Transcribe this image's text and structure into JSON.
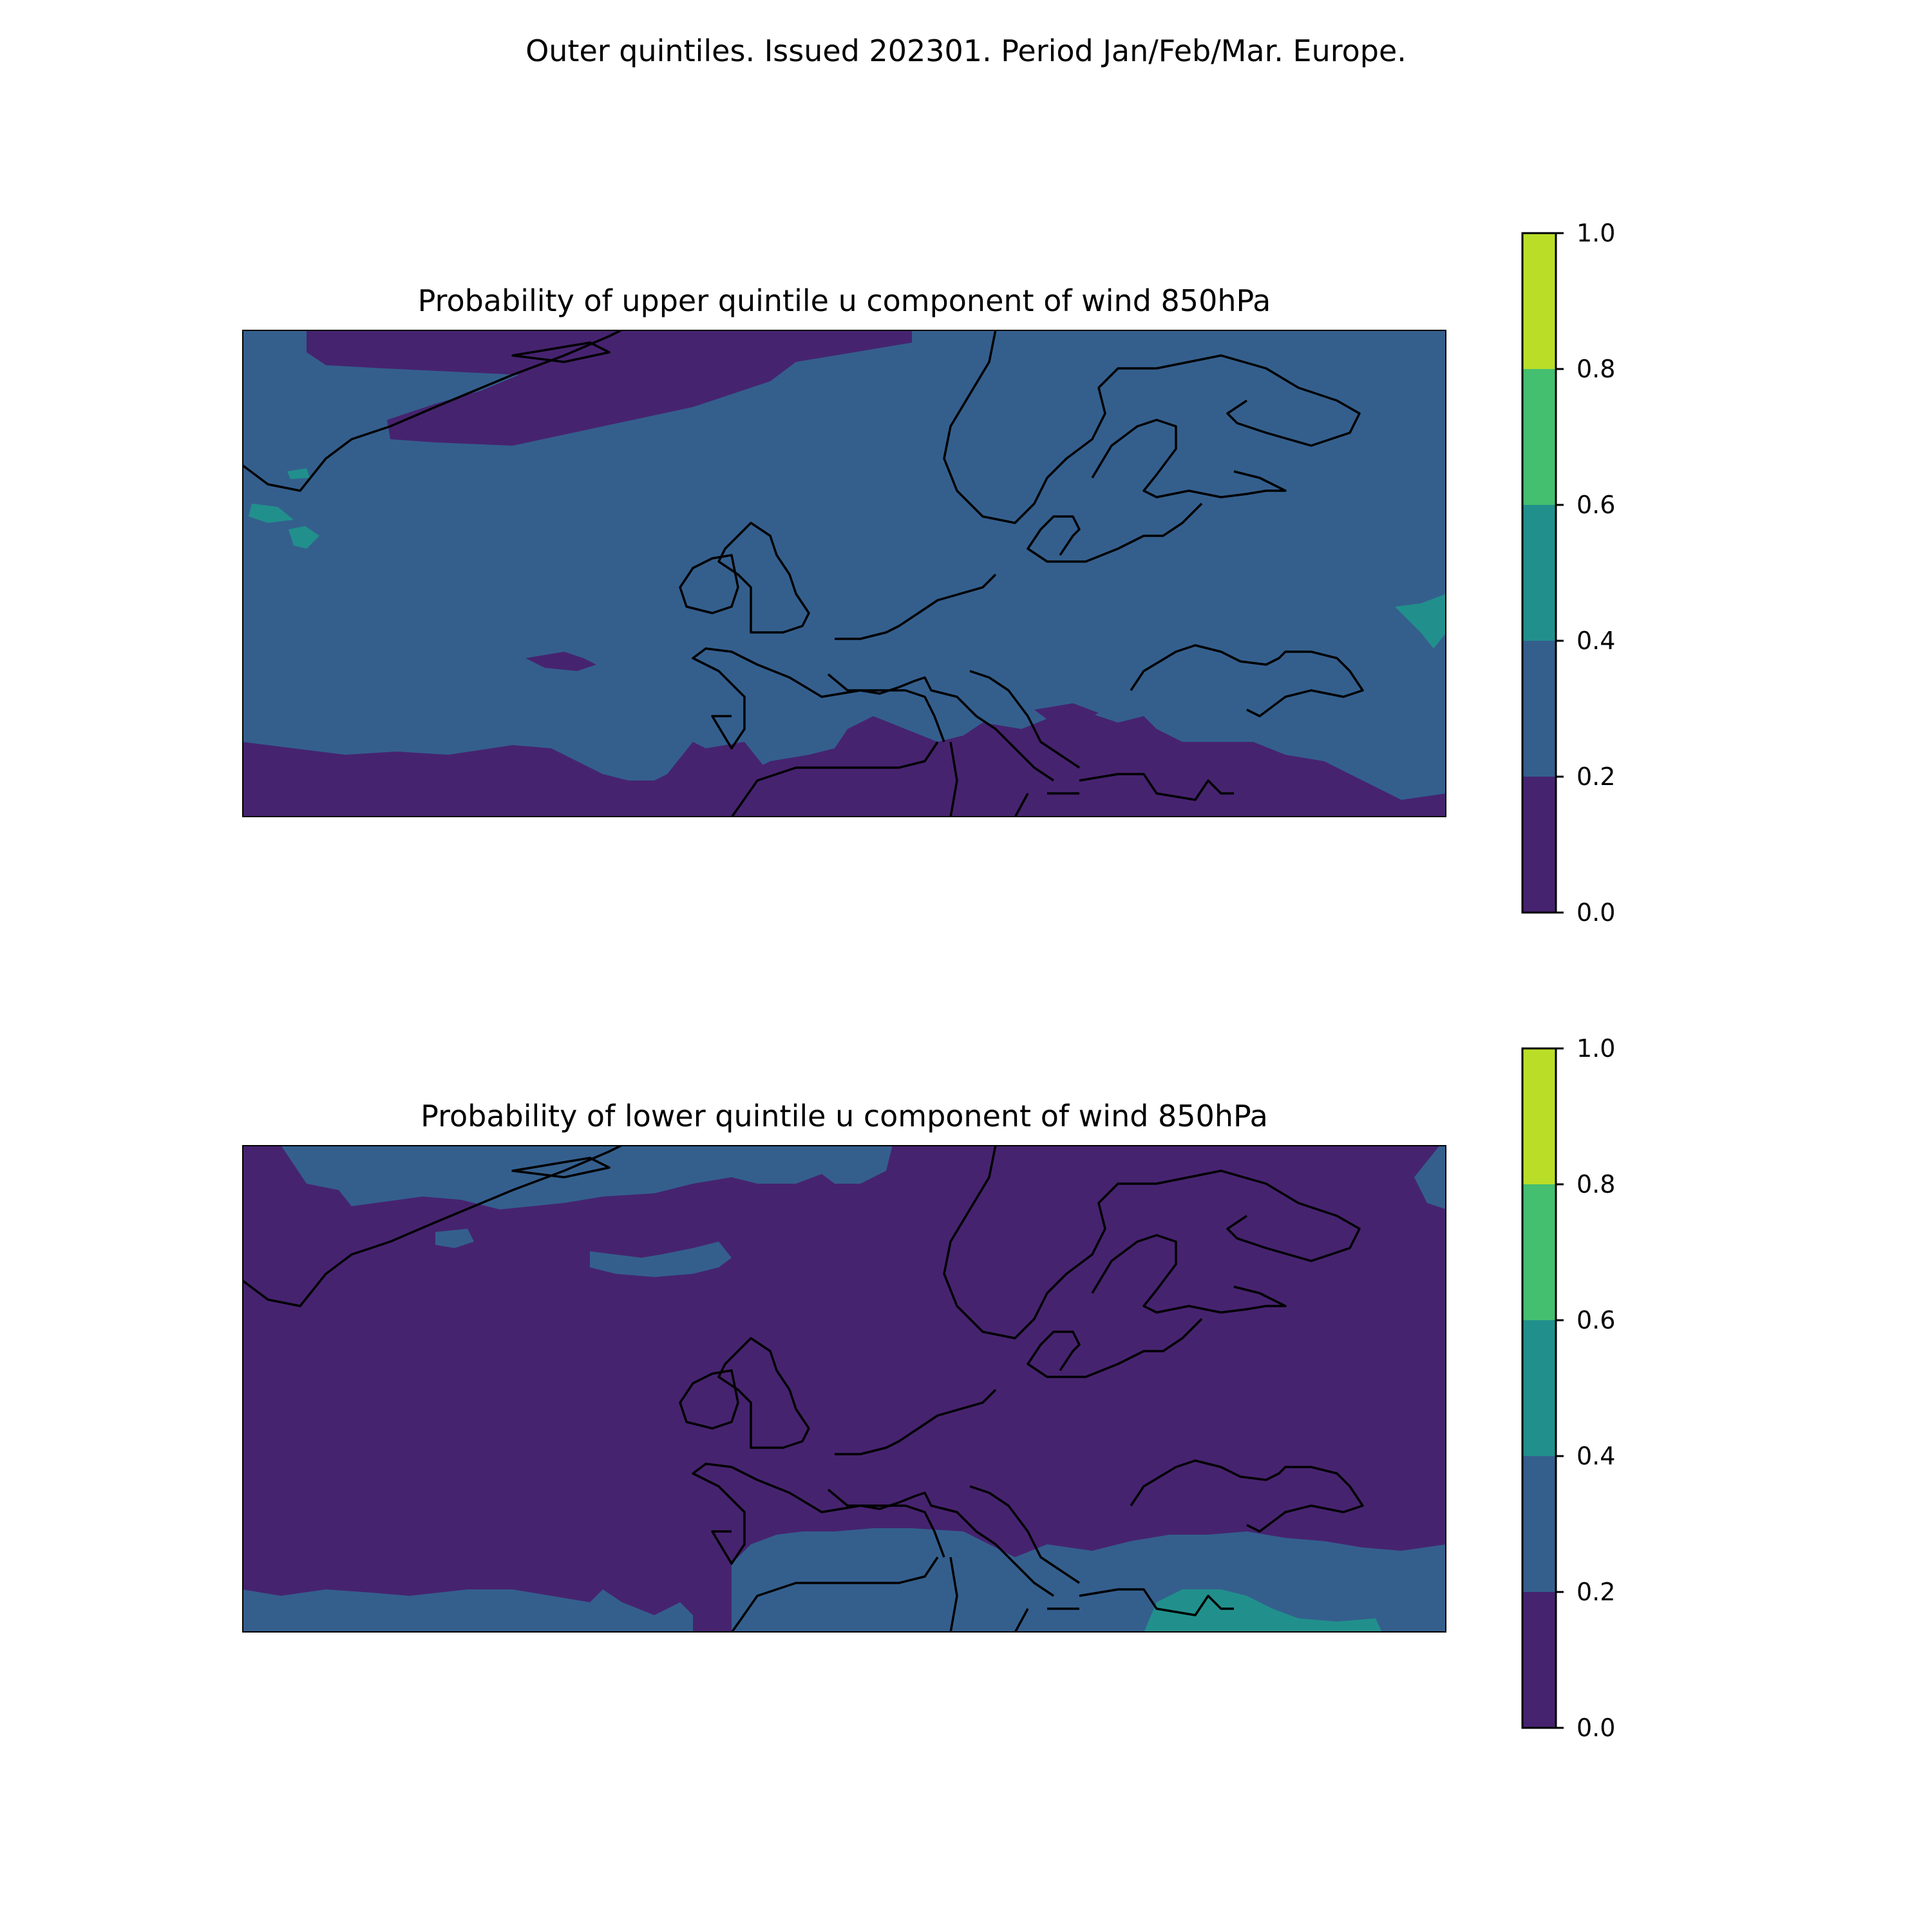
{
  "title": "Outer quintiles. Issued 202301. Period Jan/Feb/Mar. Europe.",
  "colors": {
    "levels": [
      "#46236f",
      "#345f8d",
      "#21908c",
      "#44bf70",
      "#bade27"
    ],
    "coastline": "#000000",
    "frame": "#000000"
  },
  "colorbar": {
    "boundaries": [
      0.0,
      0.2,
      0.4,
      0.6,
      0.8,
      1.0
    ],
    "tick_labels": [
      "0.0",
      "0.2",
      "0.4",
      "0.6",
      "0.8",
      "1.0"
    ]
  },
  "panels": [
    {
      "title": "Probability of upper quintile u component of wind 850hPa",
      "background_level": "0.2–0.4",
      "regions": [
        {
          "level": "0.0–0.2",
          "area": "northern Greenland Sea / Iceland north"
        },
        {
          "level": "0.0–0.2",
          "area": "subtropical Atlantic south edge"
        },
        {
          "level": "0.0–0.2",
          "area": "Mediterranean / North Africa / Turkey"
        },
        {
          "level": "0.4–0.6",
          "area": "small patches east of Greenland"
        },
        {
          "level": "0.4–0.6",
          "area": "far east edge near Caspian"
        }
      ]
    },
    {
      "title": "Probability of lower quintile u component of wind 850hPa",
      "background_level": "0.0–0.2",
      "regions": [
        {
          "level": "0.2–0.4",
          "area": "Greenland Sea / north of Iceland"
        },
        {
          "level": "0.2–0.4",
          "area": "subtropical Atlantic south edge"
        },
        {
          "level": "0.2–0.4",
          "area": "Mediterranean / North Africa"
        },
        {
          "level": "0.4–0.6",
          "area": "eastern Mediterranean south of Greece"
        }
      ]
    }
  ]
}
